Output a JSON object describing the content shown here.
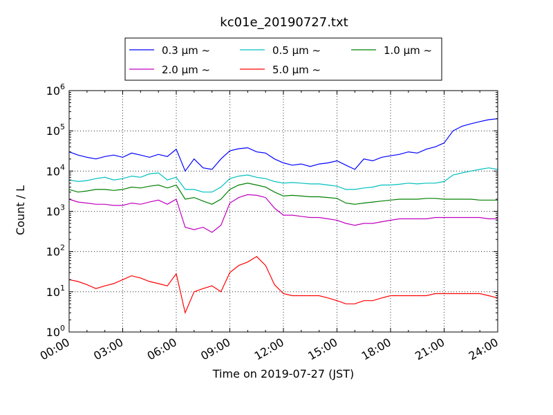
{
  "chart_data": {
    "type": "line",
    "title": "kc01e_20190727.txt",
    "xlabel": "Time on 2019-07-27 (JST)",
    "ylabel": "Count / L",
    "yscale": "log",
    "ylim": [
      1,
      1000000
    ],
    "xlim": [
      "00:00",
      "24:00"
    ],
    "grid": true,
    "legend_position": "top, above plot",
    "x_ticks": [
      "00:00",
      "03:00",
      "06:00",
      "09:00",
      "12:00",
      "15:00",
      "18:00",
      "21:00",
      "24:00"
    ],
    "y_ticks": [
      {
        "value": 1,
        "base": "10",
        "exp": "0"
      },
      {
        "value": 10,
        "base": "10",
        "exp": "1"
      },
      {
        "value": 100,
        "base": "10",
        "exp": "2"
      },
      {
        "value": 1000,
        "base": "10",
        "exp": "3"
      },
      {
        "value": 10000,
        "base": "10",
        "exp": "4"
      },
      {
        "value": 100000,
        "base": "10",
        "exp": "5"
      },
      {
        "value": 1000000,
        "base": "10",
        "exp": "6"
      }
    ],
    "x": [
      "00:00",
      "00:30",
      "01:00",
      "01:30",
      "02:00",
      "02:30",
      "03:00",
      "03:30",
      "04:00",
      "04:30",
      "05:00",
      "05:30",
      "06:00",
      "06:30",
      "07:00",
      "07:30",
      "08:00",
      "08:30",
      "09:00",
      "09:30",
      "10:00",
      "10:30",
      "11:00",
      "11:30",
      "12:00",
      "12:30",
      "13:00",
      "13:30",
      "14:00",
      "14:30",
      "15:00",
      "15:30",
      "16:00",
      "16:30",
      "17:00",
      "17:30",
      "18:00",
      "18:30",
      "19:00",
      "19:30",
      "20:00",
      "20:30",
      "21:00",
      "21:30",
      "22:00",
      "22:30",
      "23:00",
      "23:30",
      "24:00"
    ],
    "series": [
      {
        "name": "0.3 μm ~",
        "color": "#0000ff",
        "values": [
          30000,
          25000,
          22000,
          20000,
          23000,
          25000,
          22000,
          28000,
          25000,
          22000,
          26000,
          23000,
          35000,
          10000,
          20000,
          12000,
          11000,
          20000,
          32000,
          36000,
          38000,
          30000,
          28000,
          20000,
          16000,
          14000,
          15000,
          13000,
          15000,
          16000,
          18000,
          14000,
          11000,
          20000,
          18000,
          22000,
          24000,
          26000,
          30000,
          28000,
          35000,
          40000,
          50000,
          100000,
          130000,
          150000,
          170000,
          190000,
          200000
        ]
      },
      {
        "name": "0.5 μm ~",
        "color": "#00bfbf",
        "values": [
          6000,
          5500,
          5800,
          6500,
          7000,
          6000,
          6500,
          7500,
          7000,
          8500,
          9000,
          6000,
          7000,
          3500,
          3500,
          3000,
          3000,
          4000,
          6500,
          7500,
          8000,
          7000,
          6500,
          5500,
          5000,
          5200,
          5000,
          4800,
          4800,
          4500,
          4200,
          3500,
          3500,
          3800,
          4000,
          4500,
          4500,
          4700,
          5000,
          4800,
          5000,
          5000,
          5500,
          8000,
          9000,
          10000,
          11000,
          12000,
          11000
        ]
      },
      {
        "name": "1.0 μm ~",
        "color": "#008000",
        "values": [
          3500,
          3000,
          3200,
          3500,
          3500,
          3300,
          3500,
          4000,
          3800,
          4200,
          4500,
          3800,
          4500,
          2000,
          2200,
          1800,
          1500,
          2000,
          3500,
          4500,
          5000,
          4500,
          4000,
          3000,
          2400,
          2500,
          2400,
          2300,
          2300,
          2200,
          2100,
          1600,
          1500,
          1600,
          1700,
          1800,
          1900,
          2000,
          2000,
          2000,
          2100,
          2100,
          2000,
          2000,
          2000,
          2000,
          1900,
          1900,
          1900
        ]
      },
      {
        "name": "2.0 μm ~",
        "color": "#bf00bf",
        "values": [
          2000,
          1700,
          1600,
          1500,
          1500,
          1400,
          1400,
          1600,
          1500,
          1700,
          1900,
          1500,
          2000,
          400,
          350,
          400,
          300,
          450,
          1600,
          2200,
          2600,
          2500,
          2200,
          1200,
          800,
          800,
          750,
          700,
          700,
          650,
          600,
          500,
          450,
          500,
          500,
          550,
          600,
          650,
          650,
          650,
          650,
          700,
          700,
          700,
          700,
          700,
          700,
          650,
          650
        ]
      },
      {
        "name": "5.0 μm ~",
        "color": "#ff0000",
        "values": [
          20,
          18,
          15,
          12,
          14,
          16,
          20,
          25,
          22,
          18,
          16,
          14,
          28,
          3,
          10,
          12,
          14,
          10,
          30,
          45,
          55,
          75,
          45,
          15,
          9,
          8,
          8,
          8,
          8,
          7,
          6,
          5,
          5,
          6,
          6,
          7,
          8,
          8,
          8,
          8,
          8,
          9,
          9,
          9,
          9,
          9,
          9,
          8,
          7
        ]
      }
    ]
  }
}
